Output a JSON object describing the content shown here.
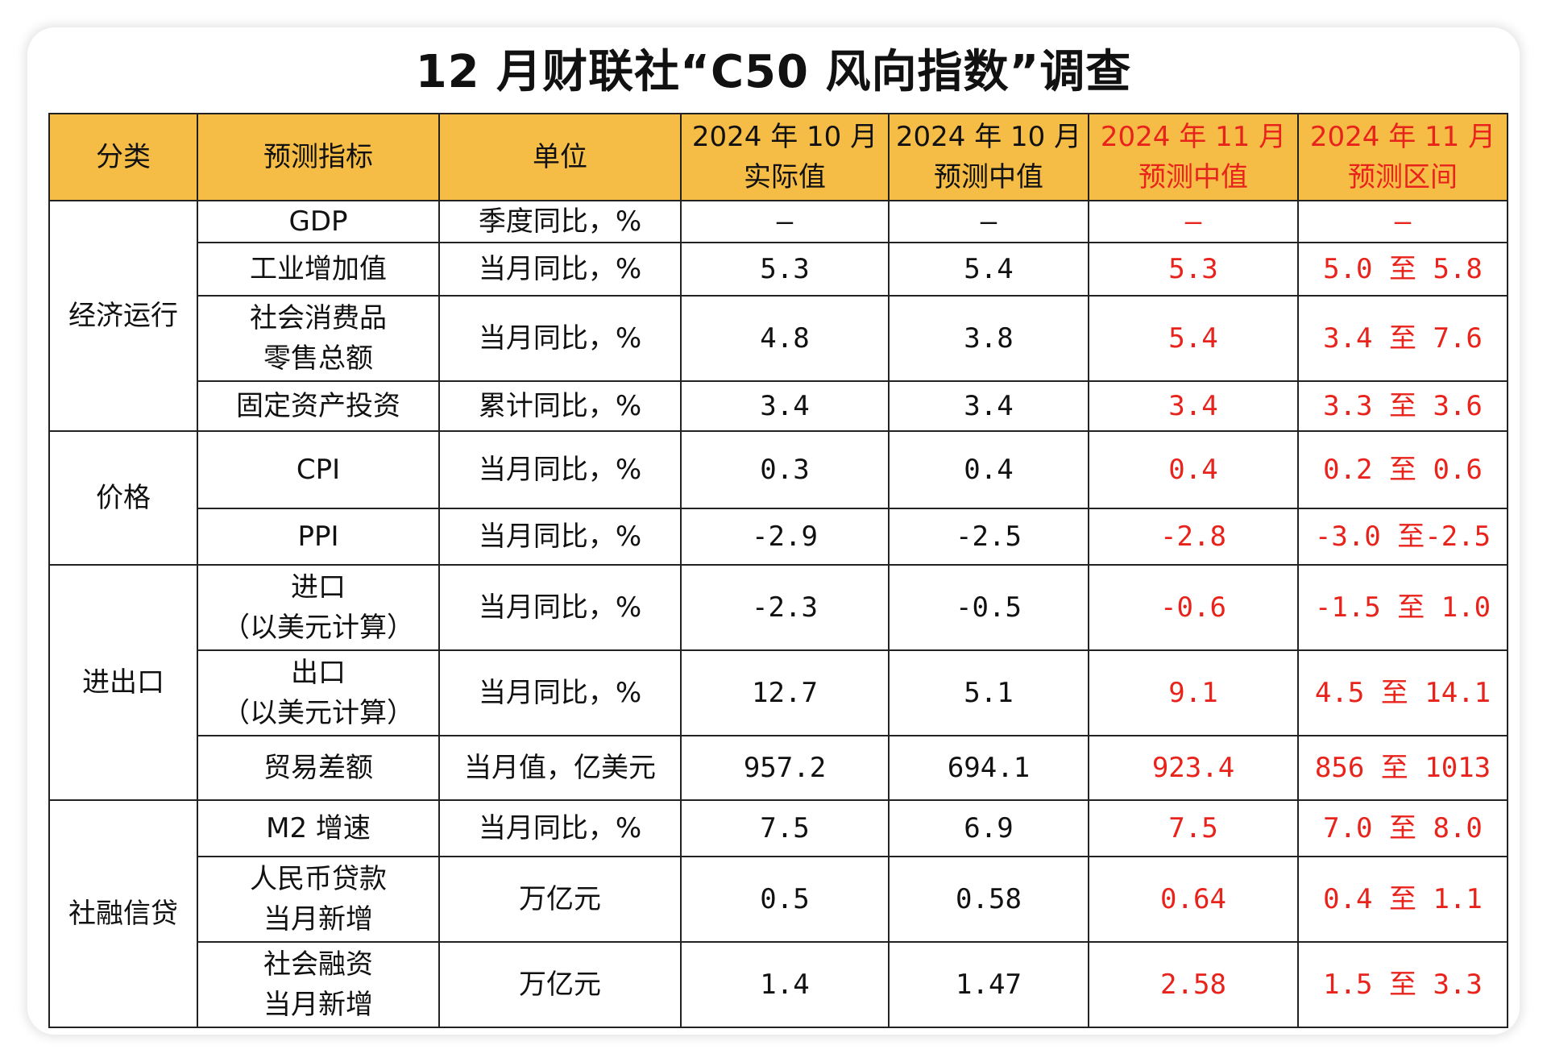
{
  "title": "12 月财联社“C50 风向指数”调查",
  "colors": {
    "header_bg": "#f5bd46",
    "accent_red": "#e8231b",
    "border": "#222222"
  },
  "headers": {
    "category": "分类",
    "indicator": "预测指标",
    "unit": "单位",
    "oct_actual_1": "2024 年 10 月",
    "oct_actual_2": "实际值",
    "oct_forecast_1": "2024 年 10 月",
    "oct_forecast_2": "预测中值",
    "nov_median_1": "2024 年 11 月",
    "nov_median_2": "预测中值",
    "nov_range_1": "2024 年 11 月",
    "nov_range_2": "预测区间"
  },
  "categories": {
    "economy": "经济运行",
    "price": "价格",
    "trade": "进出口",
    "credit": "社融信贷"
  },
  "rows": [
    {
      "ind1": "GDP",
      "ind2": "",
      "unit": "季度同比，%",
      "oct_actual": "—",
      "oct_forecast": "—",
      "nov_median": "—",
      "nov_range": "—"
    },
    {
      "ind1": "工业增加值",
      "ind2": "",
      "unit": "当月同比，%",
      "oct_actual": "5.3",
      "oct_forecast": "5.4",
      "nov_median": "5.3",
      "nov_range": "5.0 至 5.8"
    },
    {
      "ind1": "社会消费品",
      "ind2": "零售总额",
      "unit": "当月同比，%",
      "oct_actual": "4.8",
      "oct_forecast": "3.8",
      "nov_median": "5.4",
      "nov_range": "3.4 至 7.6"
    },
    {
      "ind1": "固定资产投资",
      "ind2": "",
      "unit": "累计同比，%",
      "oct_actual": "3.4",
      "oct_forecast": "3.4",
      "nov_median": "3.4",
      "nov_range": "3.3 至 3.6"
    },
    {
      "ind1": "CPI",
      "ind2": "",
      "unit": "当月同比，%",
      "oct_actual": "0.3",
      "oct_forecast": "0.4",
      "nov_median": "0.4",
      "nov_range": "0.2 至 0.6"
    },
    {
      "ind1": "PPI",
      "ind2": "",
      "unit": "当月同比，%",
      "oct_actual": "-2.9",
      "oct_forecast": "-2.5",
      "nov_median": "-2.8",
      "nov_range": "-3.0 至-2.5"
    },
    {
      "ind1": "进口",
      "ind2": "（以美元计算）",
      "unit": "当月同比，%",
      "oct_actual": "-2.3",
      "oct_forecast": "-0.5",
      "nov_median": "-0.6",
      "nov_range": "-1.5 至 1.0"
    },
    {
      "ind1": "出口",
      "ind2": "（以美元计算）",
      "unit": "当月同比，%",
      "oct_actual": "12.7",
      "oct_forecast": "5.1",
      "nov_median": "9.1",
      "nov_range": "4.5 至 14.1"
    },
    {
      "ind1": "贸易差额",
      "ind2": "",
      "unit": "当月值，亿美元",
      "oct_actual": "957.2",
      "oct_forecast": "694.1",
      "nov_median": "923.4",
      "nov_range": "856 至 1013"
    },
    {
      "ind1": "M2 增速",
      "ind2": "",
      "unit": "当月同比，%",
      "oct_actual": "7.5",
      "oct_forecast": "6.9",
      "nov_median": "7.5",
      "nov_range": "7.0 至 8.0"
    },
    {
      "ind1": "人民币贷款",
      "ind2": "当月新增",
      "unit": "万亿元",
      "oct_actual": "0.5",
      "oct_forecast": "0.58",
      "nov_median": "0.64",
      "nov_range": "0.4 至 1.1"
    },
    {
      "ind1": "社会融资",
      "ind2": "当月新增",
      "unit": "万亿元",
      "oct_actual": "1.4",
      "oct_forecast": "1.47",
      "nov_median": "2.58",
      "nov_range": "1.5 至 3.3"
    }
  ]
}
